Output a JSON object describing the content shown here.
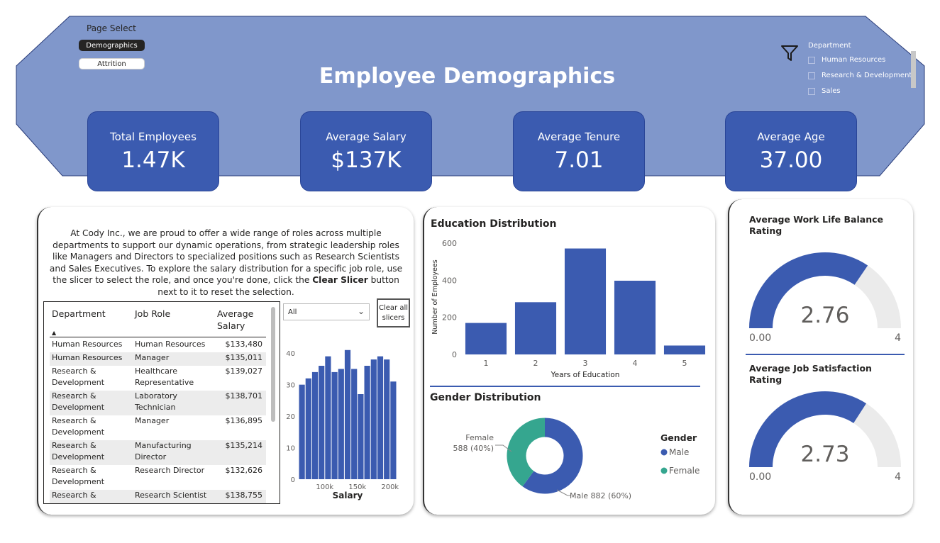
{
  "page_select": {
    "label": "Page Select",
    "buttons": [
      {
        "label": "Demographics",
        "active": true
      },
      {
        "label": "Attrition",
        "active": false
      }
    ]
  },
  "header": {
    "title": "Employee Demographics",
    "bg_color": "#8097cb",
    "kpi_color": "#3b5bb0"
  },
  "department_slicer": {
    "title": "Department",
    "items": [
      "Human Resources",
      "Research & Development",
      "Sales"
    ]
  },
  "kpis": [
    {
      "label": "Total Employees",
      "value": "1.47K"
    },
    {
      "label": "Average Salary",
      "value": "$137K"
    },
    {
      "label": "Average Tenure",
      "value": "7.01"
    },
    {
      "label": "Average Age",
      "value": "37.00"
    }
  ],
  "intro": {
    "text_before": "At Cody Inc., we are proud to offer a wide range of roles across multiple departments to support our dynamic operations, from strategic leadership roles like Managers and Directors to specialized positions such as Research Scientists and Sales Executives. To explore the salary distribution for a specific job role, use the slicer to select the role, and once you're done, click the ",
    "bold": "Clear Slicer",
    "text_after": " button next to it to reset the selection."
  },
  "table": {
    "headers": [
      "Department",
      "Job Role",
      "Average Salary"
    ],
    "rows": [
      {
        "department": "Human Resources",
        "role": "Human Resources",
        "salary": "$133,480"
      },
      {
        "department": "Human Resources",
        "role": "Manager",
        "salary": "$135,011"
      },
      {
        "department": "Research & Development",
        "role": "Healthcare Representative",
        "salary": "$139,027"
      },
      {
        "department": "Research & Development",
        "role": "Laboratory Technician",
        "salary": "$138,701"
      },
      {
        "department": "Research & Development",
        "role": "Manager",
        "salary": "$136,895"
      },
      {
        "department": "Research & Development",
        "role": "Manufacturing Director",
        "salary": "$135,214"
      },
      {
        "department": "Research & Development",
        "role": "Research Director",
        "salary": "$132,626"
      },
      {
        "department": "Research &",
        "role": "Research Scientist",
        "salary": "$138,755"
      }
    ]
  },
  "role_slicer": {
    "value": "All"
  },
  "clear_button": {
    "label": "Clear all slicers"
  },
  "chart_data": [
    {
      "type": "bar",
      "id": "salary_histogram",
      "title": "",
      "xlabel": "Salary",
      "ylabel": "",
      "x_ticks": [
        "100k",
        "150k",
        "200k"
      ],
      "xlim": [
        60000,
        210000
      ],
      "y_ticks": [
        0,
        10,
        20,
        30,
        40
      ],
      "ylim": [
        0,
        45
      ],
      "values": [
        30,
        32,
        34,
        36,
        39,
        34,
        35,
        41,
        35,
        27,
        36,
        38,
        39,
        38,
        31
      ],
      "color": "#3b5bb0"
    },
    {
      "type": "bar",
      "id": "education_distribution",
      "title": "Education Distribution",
      "xlabel": "Years of Education",
      "ylabel": "Number of Employees",
      "categories": [
        "1",
        "2",
        "3",
        "4",
        "5"
      ],
      "values": [
        170,
        282,
        572,
        398,
        48
      ],
      "y_ticks": [
        0,
        200,
        400,
        600
      ],
      "ylim": [
        0,
        620
      ],
      "color": "#3b5bb0"
    },
    {
      "type": "pie",
      "id": "gender_distribution",
      "title": "Gender Distribution",
      "legend_title": "Gender",
      "legend_position": "right",
      "slices": [
        {
          "name": "Male",
          "value": 882,
          "label": "Male 882 (60%)",
          "color": "#3b5bb0"
        },
        {
          "name": "Female",
          "value": 588,
          "label": "Female 588 (40%)",
          "label_line1": "Female",
          "label_line2": "588 (40%)",
          "color": "#35a68f"
        }
      ]
    }
  ],
  "gauges": [
    {
      "title": "Average Work Life Balance Rating",
      "value": 2.76,
      "min_label": "0.00",
      "max_label": "4",
      "max": 4,
      "value_label": "2.76",
      "fill_color": "#3b5bb0",
      "track_color": "#ebebeb"
    },
    {
      "title": "Average Job Satisfaction Rating",
      "value": 2.73,
      "min_label": "0.00",
      "max_label": "4",
      "max": 4,
      "value_label": "2.73",
      "fill_color": "#3b5bb0",
      "track_color": "#ebebeb"
    }
  ]
}
